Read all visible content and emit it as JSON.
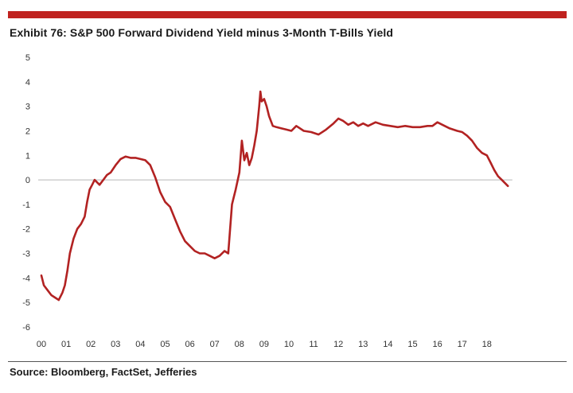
{
  "accent_color": "#c0221f",
  "chart_data": {
    "type": "line",
    "title": "Exhibit 76: S&P 500 Forward Dividend Yield minus 3-Month T-Bills Yield",
    "xlabel": "",
    "ylabel": "",
    "ylim": [
      -6,
      5
    ],
    "xlim": [
      2000,
      2018.9
    ],
    "y_ticks": [
      5,
      4,
      3,
      2,
      1,
      0,
      -1,
      -2,
      -3,
      -4,
      -5,
      -6
    ],
    "x_ticks": [
      "00",
      "01",
      "02",
      "03",
      "04",
      "05",
      "06",
      "07",
      "08",
      "09",
      "10",
      "11",
      "12",
      "13",
      "14",
      "15",
      "16",
      "17",
      "18"
    ],
    "zero_line": true,
    "grid": false,
    "legend": "none",
    "series": [
      {
        "color": "#b22222",
        "x": [
          2000.0,
          2000.1,
          2000.25,
          2000.4,
          2000.55,
          2000.7,
          2000.85,
          2000.95,
          2001.05,
          2001.15,
          2001.3,
          2001.45,
          2001.6,
          2001.75,
          2001.85,
          2001.95,
          2002.05,
          2002.15,
          2002.25,
          2002.35,
          2002.5,
          2002.65,
          2002.8,
          2003.0,
          2003.2,
          2003.4,
          2003.6,
          2003.8,
          2004.0,
          2004.2,
          2004.4,
          2004.6,
          2004.8,
          2005.0,
          2005.2,
          2005.4,
          2005.6,
          2005.8,
          2006.0,
          2006.2,
          2006.4,
          2006.6,
          2006.8,
          2007.0,
          2007.2,
          2007.4,
          2007.55,
          2007.7,
          2007.85,
          2008.0,
          2008.1,
          2008.2,
          2008.3,
          2008.4,
          2008.5,
          2008.6,
          2008.7,
          2008.8,
          2008.85,
          2008.9,
          2009.0,
          2009.1,
          2009.2,
          2009.35,
          2009.5,
          2009.7,
          2009.9,
          2010.1,
          2010.3,
          2010.6,
          2010.9,
          2011.2,
          2011.5,
          2011.8,
          2012.0,
          2012.2,
          2012.4,
          2012.6,
          2012.8,
          2013.0,
          2013.2,
          2013.5,
          2013.8,
          2014.1,
          2014.4,
          2014.7,
          2015.0,
          2015.3,
          2015.6,
          2015.8,
          2016.0,
          2016.2,
          2016.5,
          2016.8,
          2017.0,
          2017.2,
          2017.4,
          2017.6,
          2017.8,
          2018.0,
          2018.15,
          2018.3,
          2018.45,
          2018.6,
          2018.75,
          2018.85
        ],
        "values": [
          -3.9,
          -4.3,
          -4.5,
          -4.7,
          -4.8,
          -4.9,
          -4.6,
          -4.3,
          -3.7,
          -3.0,
          -2.4,
          -2.0,
          -1.8,
          -1.5,
          -0.9,
          -0.4,
          -0.2,
          0.0,
          -0.1,
          -0.2,
          0.0,
          0.2,
          0.3,
          0.6,
          0.85,
          0.95,
          0.9,
          0.9,
          0.85,
          0.8,
          0.6,
          0.1,
          -0.5,
          -0.9,
          -1.1,
          -1.6,
          -2.1,
          -2.5,
          -2.7,
          -2.9,
          -3.0,
          -3.0,
          -3.1,
          -3.2,
          -3.1,
          -2.9,
          -3.0,
          -1.0,
          -0.4,
          0.3,
          1.6,
          0.8,
          1.1,
          0.6,
          0.9,
          1.4,
          2.0,
          3.0,
          3.6,
          3.2,
          3.3,
          3.0,
          2.6,
          2.2,
          2.15,
          2.1,
          2.05,
          2.0,
          2.2,
          2.0,
          1.95,
          1.85,
          2.05,
          2.3,
          2.5,
          2.4,
          2.25,
          2.35,
          2.2,
          2.3,
          2.2,
          2.35,
          2.25,
          2.2,
          2.15,
          2.2,
          2.15,
          2.15,
          2.2,
          2.2,
          2.35,
          2.25,
          2.1,
          2.0,
          1.95,
          1.8,
          1.6,
          1.3,
          1.1,
          1.0,
          0.7,
          0.4,
          0.15,
          0.0,
          -0.15,
          -0.25
        ]
      }
    ]
  },
  "source": "Source: Bloomberg, FactSet, Jefferies"
}
